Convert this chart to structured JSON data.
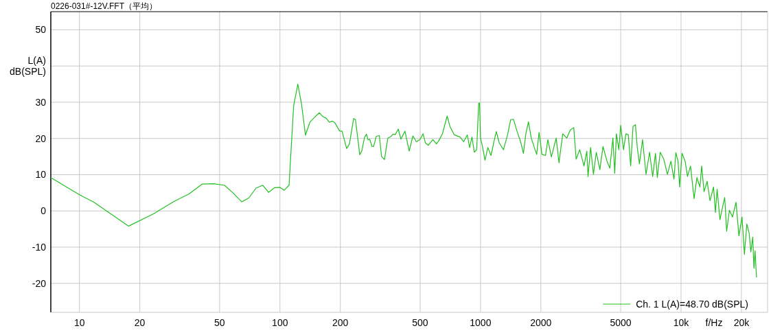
{
  "chart_data": {
    "type": "line",
    "title": "0226-031#-12V.FFT（平均）",
    "xlabel": "f/Hz",
    "ylabel": "L(A) dB(SPL)",
    "log": "x",
    "grid": true,
    "legend": "bottom right",
    "marker": "none",
    "line_style": "solid",
    "xlim": [
      7.2,
      27000
    ],
    "ylim": [
      -28,
      55
    ],
    "xticks": [
      10,
      20,
      50,
      100,
      200,
      500,
      1000,
      2000,
      5000,
      {
        "value": 10000,
        "label": "10k"
      },
      {
        "value": 20000,
        "label": "20k"
      }
    ],
    "yticks": [
      -20,
      -10,
      0,
      10,
      20,
      30,
      {
        "value": 40,
        "label": null
      },
      50
    ],
    "series": [
      {
        "name": "Ch. 1 L(A)=48.70 dB(SPL)",
        "color": "#20c020",
        "x": [
          7.2,
          10.05,
          11.8,
          17.6,
          23.4,
          29.6,
          35.2,
          40.9,
          46.5,
          52.8,
          58,
          64.5,
          70,
          76,
          82.1,
          87.8,
          93.9,
          100,
          105,
          111,
          117,
          122.8,
          128,
          134,
          141,
          148,
          157,
          164,
          170,
          176,
          183,
          188,
          198,
          204,
          215,
          222,
          233,
          238,
          250,
          256,
          264,
          270,
          275,
          280,
          288,
          293,
          302,
          313,
          321,
          332,
          345,
          357,
          366,
          376,
          389,
          401,
          406,
          420,
          441,
          460,
          479,
          499,
          517,
          531,
          549,
          579,
          603,
          620,
          646,
          682,
          704,
          740,
          791,
          824,
          859,
          883,
          907,
          931,
          957,
          979,
          989,
          1000,
          1025,
          1053,
          1088,
          1128,
          1167,
          1199,
          1239,
          1302,
          1364,
          1414,
          1460,
          1521,
          1585,
          1637,
          1683,
          1734,
          1791,
          1855,
          1906,
          1959,
          2024,
          2109,
          2168,
          2256,
          2384,
          2462,
          2571,
          2692,
          2800,
          2917,
          2998,
          3125,
          3281,
          3390,
          3436,
          3540,
          3657,
          3778,
          3937,
          4081,
          4274,
          4415,
          4573,
          4670,
          4761,
          4893,
          5001,
          5166,
          5309,
          5457,
          5609,
          5759,
          5920,
          6050,
          6200,
          6426,
          6688,
          6969,
          7218,
          7454,
          7615,
          7870,
          8200,
          8550,
          8900,
          9220,
          9420,
          9660,
          9840,
          10110,
          10480,
          10770,
          11150,
          11610,
          12000,
          12420,
          12670,
          13020,
          13490,
          13940,
          14520,
          14840,
          15130,
          15630,
          16060,
          16510,
          16880,
          17430,
          18060,
          18800,
          19430,
          20140,
          20700,
          21280,
          21860,
          22290,
          22770,
          23090,
          23390,
          23780
        ],
        "values": [
          9.2,
          4.4,
          2.4,
          -4.2,
          -0.8,
          2.6,
          4.7,
          7.4,
          7.5,
          7.1,
          5.1,
          2.5,
          3.6,
          6.3,
          7.1,
          5.1,
          6.4,
          6.5,
          5.7,
          7.1,
          29.0,
          35.0,
          29.6,
          20.9,
          24.5,
          25.7,
          27.1,
          26.0,
          25.6,
          24.5,
          24.8,
          24.3,
          22.1,
          22.0,
          17.2,
          18.5,
          25.5,
          25.2,
          15.5,
          16.6,
          20.3,
          21.2,
          19.6,
          19.8,
          17.8,
          17.8,
          20.6,
          20.8,
          15.0,
          14.2,
          20.1,
          20.5,
          21.2,
          21.1,
          22.6,
          19.8,
          20.4,
          22.0,
          16.5,
          20.7,
          19.1,
          19.7,
          21.3,
          18.8,
          18.1,
          19.7,
          18.5,
          19.4,
          21.3,
          26.2,
          23.3,
          21.0,
          20.4,
          19.1,
          21.0,
          17.5,
          20.4,
          16.2,
          16.9,
          29.7,
          29.8,
          20.1,
          17.5,
          14.0,
          17.5,
          15.3,
          19.1,
          21.9,
          18.8,
          16.9,
          21.0,
          25.2,
          25.3,
          22.0,
          19.1,
          15.9,
          21.3,
          24.6,
          20.1,
          17.5,
          15.6,
          21.7,
          15.6,
          15.3,
          19.7,
          14.9,
          20.1,
          13.3,
          21.3,
          20.1,
          22.3,
          23.0,
          14.3,
          16.9,
          12.4,
          16.5,
          9.5,
          17.5,
          10.1,
          16.2,
          11.4,
          17.8,
          13.7,
          11.8,
          20.1,
          10.4,
          21.3,
          16.9,
          23.6,
          16.9,
          21.3,
          21.0,
          12.4,
          23.3,
          23.8,
          17.5,
          13.0,
          19.7,
          10.1,
          16.2,
          9.5,
          15.9,
          9.2,
          16.2,
          14.3,
          10.1,
          13.7,
          8.8,
          16.1,
          13.7,
          6.6,
          15.9,
          13.7,
          9.5,
          12.4,
          3.4,
          9.2,
          6.6,
          12.4,
          5.3,
          8.2,
          2.8,
          6.6,
          -0.4,
          6.0,
          -2.4,
          0.8,
          3.7,
          -5.6,
          0.2,
          -1.7,
          2.4,
          -6.9,
          -1.7,
          -12.0,
          -3.6,
          -6.2,
          -11.3,
          -7.2,
          -15.8,
          -11.0,
          -18.4
        ]
      }
    ]
  }
}
